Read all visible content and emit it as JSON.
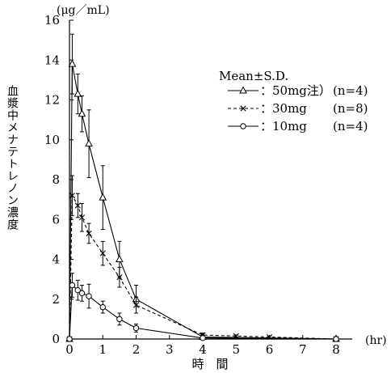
{
  "chart_data": {
    "type": "line",
    "xlabel": "時　間",
    "ylabel": "血漿中メナテトレノン濃度",
    "y_unit": "(μg／mL)",
    "x_unit": "(hr)",
    "xlim": [
      0,
      8
    ],
    "ylim": [
      0,
      16
    ],
    "x_ticks": [
      0,
      1,
      2,
      3,
      4,
      5,
      6,
      7,
      8
    ],
    "y_ticks": [
      0,
      2,
      4,
      6,
      8,
      10,
      12,
      14,
      16
    ],
    "legend_title": "Mean±S.D.",
    "legend_position": "right",
    "series": [
      {
        "name": "：50mg注）",
        "n": "(n=4)",
        "marker": "triangle",
        "line": "solid",
        "x": [
          0,
          0.083,
          0.25,
          0.375,
          0.583,
          1,
          1.5,
          2,
          4,
          8
        ],
        "y": [
          0,
          13.8,
          12.3,
          11.3,
          9.8,
          7.1,
          4.0,
          2.0,
          0.1,
          0
        ],
        "sd": [
          0,
          1.5,
          1.0,
          0.9,
          1.7,
          1.6,
          0.9,
          0.7,
          0.1,
          0
        ]
      },
      {
        "name": "：30mg",
        "n": "(n=8)",
        "marker": "x",
        "line": "dashed",
        "x": [
          0,
          0.083,
          0.25,
          0.375,
          0.583,
          1,
          1.5,
          2,
          4,
          5,
          6,
          8
        ],
        "y": [
          0,
          7.2,
          6.7,
          6.1,
          5.3,
          4.3,
          3.1,
          1.7,
          0.2,
          0.15,
          0.1,
          0
        ],
        "sd": [
          0,
          1.0,
          0.6,
          0.7,
          0.5,
          0.6,
          0.5,
          0.4,
          0.1,
          0.05,
          0.05,
          0
        ]
      },
      {
        "name": "：10mg",
        "n": "(n=4)",
        "marker": "circle",
        "line": "solid",
        "x": [
          0,
          0.083,
          0.25,
          0.375,
          0.583,
          1,
          1.5,
          2,
          4,
          8
        ],
        "y": [
          0,
          2.7,
          2.45,
          2.3,
          2.15,
          1.6,
          1.0,
          0.55,
          0.05,
          0
        ],
        "sd": [
          0,
          0.6,
          0.5,
          0.4,
          0.6,
          0.3,
          0.3,
          0.2,
          0.03,
          0
        ]
      }
    ]
  }
}
